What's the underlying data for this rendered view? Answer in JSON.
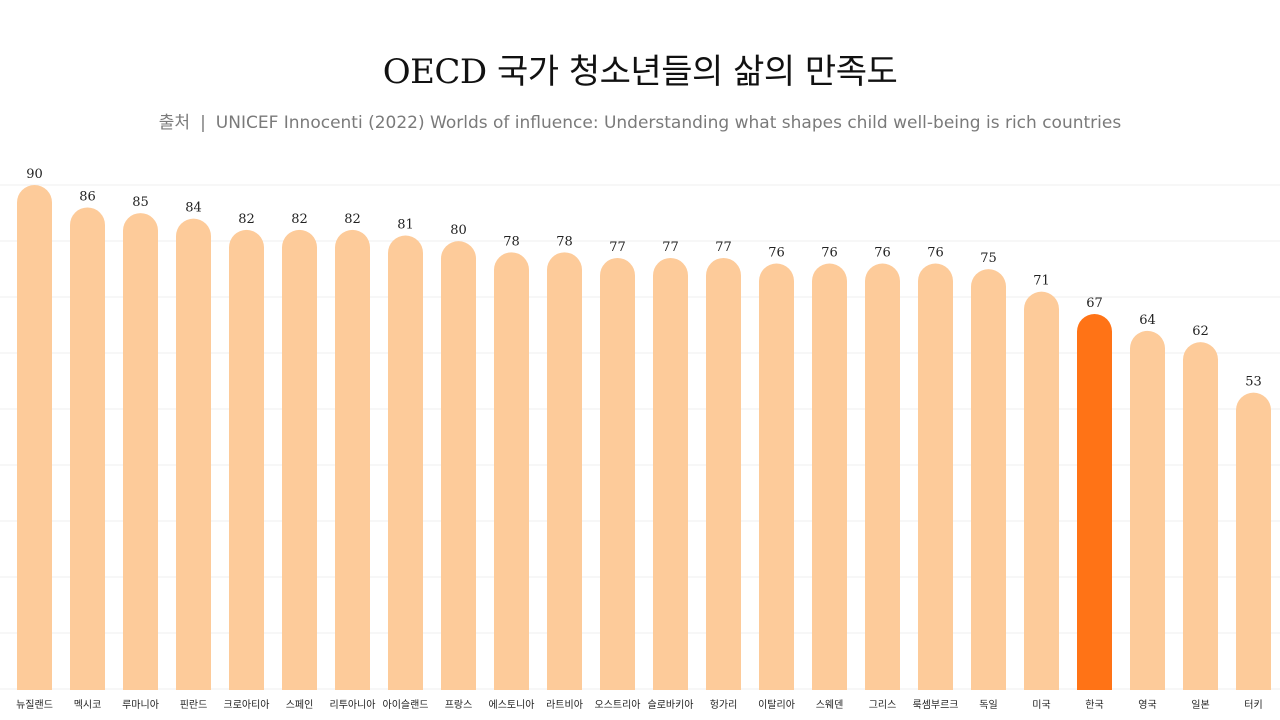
{
  "title": "OECD 국가 청소년들의 삶의 만족도",
  "subtitle": {
    "source_label": "출처",
    "separator": "|",
    "source_text": "UNICEF Innocenti (2022) Worlds of influence: Understanding what shapes child well-being is rich countries"
  },
  "colors": {
    "bar": "#FDCB9A",
    "highlight": "#FF7316",
    "grid": "#EFEFEF",
    "value_label": "#222222",
    "category_label": "#222222"
  },
  "chart_data": {
    "type": "bar",
    "title": "OECD 국가 청소년들의 삶의 만족도",
    "categories": [
      "뉴질랜드",
      "멕시코",
      "루마니아",
      "핀란드",
      "크로아티아",
      "스페인",
      "리투아니아",
      "아이슬랜드",
      "프랑스",
      "에스토니아",
      "라트비아",
      "오스트리아",
      "슬로바키아",
      "헝가리",
      "이탈리아",
      "스웨덴",
      "그리스",
      "룩셈부르크",
      "독일",
      "미국",
      "한국",
      "영국",
      "일본",
      "터키"
    ],
    "values": [
      90,
      86,
      85,
      84,
      82,
      82,
      82,
      81,
      80,
      78,
      78,
      77,
      77,
      77,
      76,
      76,
      76,
      76,
      75,
      71,
      67,
      64,
      62,
      53
    ],
    "highlight": "한국",
    "xlabel": "",
    "ylabel": "",
    "ylim": [
      0,
      90
    ],
    "grid": true,
    "legend": "none"
  }
}
